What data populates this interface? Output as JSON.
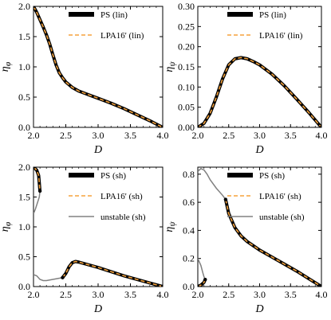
{
  "chart_data": [
    {
      "type": "line",
      "xlabel": "D",
      "ylabel": "η_φ",
      "xlim": [
        2.0,
        4.0
      ],
      "ylim": [
        0.0,
        2.0
      ],
      "xticks": [
        "2.0",
        "2.5",
        "3.0",
        "3.5",
        "4.0"
      ],
      "yticks": [
        "0.0",
        "0.5",
        "1.0",
        "1.5",
        "2.0"
      ],
      "legend_position": "top-right",
      "series": [
        {
          "name": "PS (lin)",
          "style": "thick",
          "color": "#000000",
          "x": [
            2.0,
            2.05,
            2.1,
            2.15,
            2.2,
            2.25,
            2.3,
            2.35,
            2.4,
            2.45,
            2.5,
            2.6,
            2.7,
            2.8,
            2.9,
            3.0,
            3.2,
            3.4,
            3.6,
            3.8,
            4.0
          ],
          "y": [
            2.0,
            1.9,
            1.78,
            1.66,
            1.53,
            1.38,
            1.2,
            1.03,
            0.9,
            0.82,
            0.75,
            0.66,
            0.6,
            0.56,
            0.52,
            0.48,
            0.4,
            0.31,
            0.21,
            0.11,
            0.0
          ]
        },
        {
          "name": "LPA16' (lin)",
          "style": "dashed",
          "color": "#f5a23c",
          "x": [
            2.0,
            2.05,
            2.1,
            2.15,
            2.2,
            2.25,
            2.3,
            2.35,
            2.4,
            2.45,
            2.5,
            2.6,
            2.7,
            2.8,
            2.9,
            3.0,
            3.2,
            3.4,
            3.6,
            3.8,
            4.0
          ],
          "y": [
            2.0,
            1.9,
            1.78,
            1.66,
            1.53,
            1.38,
            1.2,
            1.03,
            0.9,
            0.82,
            0.75,
            0.66,
            0.6,
            0.56,
            0.52,
            0.48,
            0.4,
            0.31,
            0.21,
            0.11,
            0.0
          ]
        }
      ]
    },
    {
      "type": "line",
      "xlabel": "D",
      "ylabel": "η_ψ",
      "xlim": [
        2.0,
        4.0
      ],
      "ylim": [
        0.0,
        0.3
      ],
      "xticks": [
        "2.0",
        "2.5",
        "3.0",
        "3.5",
        "4.0"
      ],
      "yticks": [
        "0.00",
        "0.05",
        "0.10",
        "0.15",
        "0.20",
        "0.25",
        "0.30"
      ],
      "legend_position": "top-right",
      "series": [
        {
          "name": "PS (lin)",
          "style": "thick",
          "color": "#000000",
          "x": [
            2.0,
            2.1,
            2.2,
            2.3,
            2.4,
            2.5,
            2.6,
            2.7,
            2.8,
            2.9,
            3.0,
            3.2,
            3.4,
            3.6,
            3.8,
            4.0
          ],
          "y": [
            0.0,
            0.01,
            0.035,
            0.075,
            0.12,
            0.155,
            0.17,
            0.173,
            0.17,
            0.163,
            0.155,
            0.132,
            0.103,
            0.07,
            0.036,
            0.0
          ]
        },
        {
          "name": "LPA16' (lin)",
          "style": "dashed",
          "color": "#f5a23c",
          "x": [
            2.0,
            2.1,
            2.2,
            2.3,
            2.4,
            2.5,
            2.6,
            2.7,
            2.8,
            2.9,
            3.0,
            3.2,
            3.4,
            3.6,
            3.8,
            4.0
          ],
          "y": [
            0.0,
            0.01,
            0.035,
            0.075,
            0.12,
            0.155,
            0.17,
            0.173,
            0.17,
            0.163,
            0.155,
            0.132,
            0.103,
            0.07,
            0.036,
            0.0
          ]
        }
      ]
    },
    {
      "type": "line",
      "xlabel": "D",
      "ylabel": "η_φ",
      "xlim": [
        2.0,
        4.0
      ],
      "ylim": [
        0.0,
        2.0
      ],
      "xticks": [
        "2.0",
        "2.5",
        "3.0",
        "3.5",
        "4.0"
      ],
      "yticks": [
        "0.0",
        "0.5",
        "1.0",
        "1.5",
        "2.0"
      ],
      "legend_position": "top-right",
      "series": [
        {
          "name": "PS (sh)",
          "style": "thick",
          "color": "#000000",
          "segments": [
            {
              "x": [
                2.0,
                2.05,
                2.08,
                2.1
              ],
              "y": [
                2.0,
                1.95,
                1.86,
                1.6
              ]
            },
            {
              "x": [
                2.45,
                2.5,
                2.55,
                2.6,
                2.65,
                2.7,
                2.8,
                3.0,
                3.2,
                3.4,
                3.6,
                3.8,
                4.0
              ],
              "y": [
                0.15,
                0.22,
                0.33,
                0.4,
                0.42,
                0.41,
                0.38,
                0.32,
                0.25,
                0.18,
                0.12,
                0.06,
                0.0
              ]
            }
          ]
        },
        {
          "name": "LPA16' (sh)",
          "style": "dashed",
          "color": "#f5a23c",
          "segments": [
            {
              "x": [
                2.0,
                2.05,
                2.08,
                2.1
              ],
              "y": [
                2.0,
                1.95,
                1.86,
                1.6
              ]
            },
            {
              "x": [
                2.45,
                2.5,
                2.55,
                2.6,
                2.65,
                2.7,
                2.8,
                3.0,
                3.2,
                3.4,
                3.6,
                3.8,
                4.0
              ],
              "y": [
                0.15,
                0.22,
                0.33,
                0.4,
                0.42,
                0.41,
                0.38,
                0.32,
                0.25,
                0.18,
                0.12,
                0.06,
                0.0
              ]
            }
          ]
        },
        {
          "name": "unstable (sh)",
          "style": "thin",
          "color": "#808080",
          "segments": [
            {
              "x": [
                2.1,
                2.09,
                2.06,
                2.03,
                2.0
              ],
              "y": [
                1.6,
                1.5,
                1.4,
                1.3,
                1.22
              ]
            },
            {
              "x": [
                2.0,
                2.05,
                2.1,
                2.15,
                2.2,
                2.3,
                2.4,
                2.45
              ],
              "y": [
                0.2,
                0.18,
                0.12,
                0.1,
                0.1,
                0.12,
                0.14,
                0.15
              ]
            }
          ]
        }
      ]
    },
    {
      "type": "line",
      "xlabel": "D",
      "ylabel": "η_ψ",
      "xlim": [
        2.0,
        4.0
      ],
      "ylim": [
        0.0,
        0.85
      ],
      "xticks": [
        "2.0",
        "2.5",
        "3.0",
        "3.5",
        "4.0"
      ],
      "yticks": [
        "0.0",
        "0.2",
        "0.4",
        "0.6",
        "0.8"
      ],
      "legend_position": "top-right",
      "series": [
        {
          "name": "PS (sh)",
          "style": "thick",
          "color": "#000000",
          "segments": [
            {
              "x": [
                2.0,
                2.05,
                2.1,
                2.12
              ],
              "y": [
                0.0,
                0.01,
                0.03,
                0.05
              ]
            },
            {
              "x": [
                2.45,
                2.5,
                2.6,
                2.7,
                2.8,
                2.9,
                3.0,
                3.2,
                3.4,
                3.6,
                3.8,
                4.0
              ],
              "y": [
                0.62,
                0.52,
                0.42,
                0.36,
                0.32,
                0.29,
                0.26,
                0.21,
                0.16,
                0.11,
                0.055,
                0.0
              ]
            }
          ]
        },
        {
          "name": "LPA16' (sh)",
          "style": "dashed",
          "color": "#f5a23c",
          "segments": [
            {
              "x": [
                2.0,
                2.05,
                2.1,
                2.12
              ],
              "y": [
                0.0,
                0.01,
                0.03,
                0.05
              ]
            },
            {
              "x": [
                2.45,
                2.5,
                2.6,
                2.7,
                2.8,
                2.9,
                3.0,
                3.2,
                3.4,
                3.6,
                3.8,
                4.0
              ],
              "y": [
                0.62,
                0.52,
                0.42,
                0.36,
                0.32,
                0.29,
                0.26,
                0.21,
                0.16,
                0.11,
                0.055,
                0.0
              ]
            }
          ]
        },
        {
          "name": "unstable (sh)",
          "style": "thin",
          "color": "#808080",
          "segments": [
            {
              "x": [
                2.0,
                2.05,
                2.08,
                2.1,
                2.12
              ],
              "y": [
                0.2,
                0.15,
                0.1,
                0.07,
                0.05
              ]
            },
            {
              "x": [
                2.0,
                2.05,
                2.1,
                2.15,
                2.2,
                2.3,
                2.4,
                2.45
              ],
              "y": [
                0.82,
                0.84,
                0.83,
                0.8,
                0.76,
                0.7,
                0.65,
                0.62
              ]
            }
          ]
        }
      ]
    }
  ]
}
